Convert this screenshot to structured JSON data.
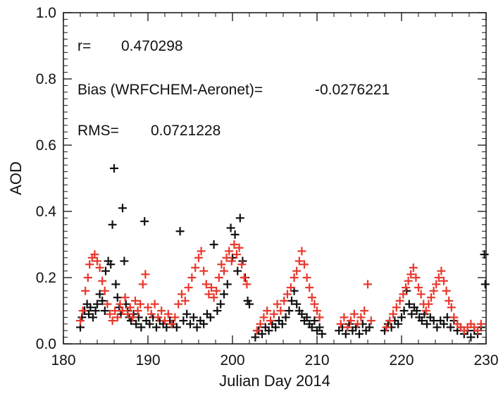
{
  "chart_data": {
    "type": "scatter",
    "title": "",
    "xlabel": "Julian Day 2014",
    "ylabel": "AOD",
    "xlim": [
      180,
      230
    ],
    "ylim": [
      0.0,
      1.0
    ],
    "x_ticks": [
      "180",
      "190",
      "200",
      "210",
      "220",
      "230"
    ],
    "y_ticks": [
      "0.0",
      "0.2",
      "0.4",
      "0.6",
      "0.8",
      "1.0"
    ],
    "grid": false,
    "legend": null,
    "marker": "+",
    "annotations": [
      {
        "label": "r=",
        "value": "0.470298"
      },
      {
        "label": "Bias (WRFCHEM-Aeronet)=",
        "value": "-0.0276221"
      },
      {
        "label": "RMS=",
        "value": "0.0721228"
      }
    ],
    "series": [
      {
        "color": "#111111",
        "points": [
          [
            182.0,
            0.05
          ],
          [
            182.2,
            0.08
          ],
          [
            182.5,
            0.1
          ],
          [
            182.8,
            0.12
          ],
          [
            183.0,
            0.09
          ],
          [
            183.2,
            0.11
          ],
          [
            183.5,
            0.08
          ],
          [
            183.8,
            0.1
          ],
          [
            184.0,
            0.12
          ],
          [
            184.3,
            0.15
          ],
          [
            184.6,
            0.13
          ],
          [
            184.9,
            0.1
          ],
          [
            185.0,
            0.22
          ],
          [
            185.3,
            0.25
          ],
          [
            185.6,
            0.24
          ],
          [
            185.8,
            0.36
          ],
          [
            186.0,
            0.53
          ],
          [
            186.2,
            0.18
          ],
          [
            186.4,
            0.14
          ],
          [
            186.6,
            0.11
          ],
          [
            186.8,
            0.09
          ],
          [
            187.0,
            0.41
          ],
          [
            187.2,
            0.25
          ],
          [
            187.4,
            0.12
          ],
          [
            187.6,
            0.1
          ],
          [
            187.8,
            0.08
          ],
          [
            188.0,
            0.07
          ],
          [
            188.3,
            0.09
          ],
          [
            188.6,
            0.06
          ],
          [
            188.9,
            0.08
          ],
          [
            189.2,
            0.05
          ],
          [
            189.6,
            0.37
          ],
          [
            189.8,
            0.07
          ],
          [
            190.2,
            0.06
          ],
          [
            190.6,
            0.08
          ],
          [
            191.0,
            0.05
          ],
          [
            191.4,
            0.07
          ],
          [
            191.8,
            0.06
          ],
          [
            192.2,
            0.05
          ],
          [
            192.6,
            0.07
          ],
          [
            193.0,
            0.06
          ],
          [
            193.4,
            0.05
          ],
          [
            193.8,
            0.34
          ],
          [
            194.2,
            0.07
          ],
          [
            194.6,
            0.09
          ],
          [
            195.0,
            0.06
          ],
          [
            195.4,
            0.08
          ],
          [
            195.8,
            0.05
          ],
          [
            196.2,
            0.07
          ],
          [
            196.6,
            0.06
          ],
          [
            197.0,
            0.09
          ],
          [
            197.4,
            0.08
          ],
          [
            197.8,
            0.3
          ],
          [
            198.2,
            0.1
          ],
          [
            198.6,
            0.12
          ],
          [
            199.0,
            0.15
          ],
          [
            199.4,
            0.18
          ],
          [
            199.8,
            0.35
          ],
          [
            200.0,
            0.26
          ],
          [
            200.3,
            0.33
          ],
          [
            200.6,
            0.22
          ],
          [
            200.9,
            0.38
          ],
          [
            201.2,
            0.25
          ],
          [
            201.5,
            0.2
          ],
          [
            201.8,
            0.13
          ],
          [
            202.0,
            0.12
          ],
          [
            202.7,
            0.02
          ],
          [
            203.1,
            0.04
          ],
          [
            203.5,
            0.03
          ],
          [
            203.9,
            0.05
          ],
          [
            204.3,
            0.04
          ],
          [
            204.7,
            0.06
          ],
          [
            205.1,
            0.05
          ],
          [
            205.5,
            0.07
          ],
          [
            205.9,
            0.06
          ],
          [
            206.3,
            0.08
          ],
          [
            206.7,
            0.1
          ],
          [
            207.0,
            0.13
          ],
          [
            207.3,
            0.16
          ],
          [
            207.6,
            0.12
          ],
          [
            207.9,
            0.1
          ],
          [
            208.2,
            0.09
          ],
          [
            208.5,
            0.07
          ],
          [
            208.8,
            0.08
          ],
          [
            209.1,
            0.06
          ],
          [
            209.4,
            0.05
          ],
          [
            209.7,
            0.07
          ],
          [
            210.0,
            0.04
          ],
          [
            210.3,
            0.05
          ],
          [
            210.6,
            0.03
          ],
          [
            212.6,
            0.04
          ],
          [
            213.0,
            0.05
          ],
          [
            213.4,
            0.03
          ],
          [
            213.8,
            0.06
          ],
          [
            214.2,
            0.04
          ],
          [
            214.6,
            0.05
          ],
          [
            215.0,
            0.03
          ],
          [
            215.4,
            0.06
          ],
          [
            215.8,
            0.04
          ],
          [
            216.2,
            0.05
          ],
          [
            218.0,
            0.04
          ],
          [
            218.4,
            0.06
          ],
          [
            218.8,
            0.05
          ],
          [
            219.2,
            0.07
          ],
          [
            219.6,
            0.06
          ],
          [
            220.0,
            0.08
          ],
          [
            220.3,
            0.1
          ],
          [
            220.6,
            0.16
          ],
          [
            220.9,
            0.12
          ],
          [
            221.2,
            0.09
          ],
          [
            221.5,
            0.11
          ],
          [
            221.8,
            0.1
          ],
          [
            222.1,
            0.08
          ],
          [
            222.4,
            0.07
          ],
          [
            222.7,
            0.09
          ],
          [
            223.0,
            0.06
          ],
          [
            223.4,
            0.08
          ],
          [
            223.8,
            0.07
          ],
          [
            224.2,
            0.05
          ],
          [
            224.6,
            0.07
          ],
          [
            225.0,
            0.06
          ],
          [
            225.4,
            0.08
          ],
          [
            225.8,
            0.05
          ],
          [
            226.2,
            0.07
          ],
          [
            226.6,
            0.04
          ],
          [
            227.0,
            0.05
          ],
          [
            227.4,
            0.03
          ],
          [
            227.8,
            0.04
          ],
          [
            228.2,
            0.02
          ],
          [
            228.6,
            0.04
          ],
          [
            229.0,
            0.03
          ],
          [
            229.4,
            0.05
          ],
          [
            229.8,
            0.27
          ],
          [
            229.9,
            0.18
          ]
        ]
      },
      {
        "color": "#e8382c",
        "points": [
          [
            182.0,
            0.07
          ],
          [
            182.3,
            0.1
          ],
          [
            182.6,
            0.16
          ],
          [
            182.9,
            0.2
          ],
          [
            183.1,
            0.24
          ],
          [
            183.4,
            0.26
          ],
          [
            183.7,
            0.27
          ],
          [
            184.0,
            0.25
          ],
          [
            184.3,
            0.23
          ],
          [
            184.6,
            0.19
          ],
          [
            184.9,
            0.16
          ],
          [
            185.2,
            0.12
          ],
          [
            185.5,
            0.09
          ],
          [
            185.8,
            0.07
          ],
          [
            186.1,
            0.1
          ],
          [
            186.4,
            0.08
          ],
          [
            186.7,
            0.12
          ],
          [
            187.0,
            0.1
          ],
          [
            187.3,
            0.14
          ],
          [
            187.6,
            0.09
          ],
          [
            187.9,
            0.11
          ],
          [
            188.2,
            0.08
          ],
          [
            188.5,
            0.13
          ],
          [
            188.8,
            0.1
          ],
          [
            189.1,
            0.12
          ],
          [
            189.4,
            0.18
          ],
          [
            189.7,
            0.21
          ],
          [
            190.0,
            0.11
          ],
          [
            190.4,
            0.09
          ],
          [
            190.8,
            0.12
          ],
          [
            191.2,
            0.08
          ],
          [
            191.6,
            0.1
          ],
          [
            192.0,
            0.07
          ],
          [
            192.4,
            0.09
          ],
          [
            192.8,
            0.06
          ],
          [
            193.2,
            0.08
          ],
          [
            193.6,
            0.12
          ],
          [
            194.0,
            0.15
          ],
          [
            194.4,
            0.13
          ],
          [
            194.8,
            0.17
          ],
          [
            195.2,
            0.2
          ],
          [
            195.6,
            0.23
          ],
          [
            196.0,
            0.26
          ],
          [
            196.3,
            0.28
          ],
          [
            196.6,
            0.22
          ],
          [
            196.9,
            0.18
          ],
          [
            197.2,
            0.15
          ],
          [
            197.5,
            0.17
          ],
          [
            197.8,
            0.14
          ],
          [
            198.1,
            0.16
          ],
          [
            198.4,
            0.2
          ],
          [
            198.7,
            0.24
          ],
          [
            199.0,
            0.22
          ],
          [
            199.3,
            0.26
          ],
          [
            199.6,
            0.28
          ],
          [
            199.9,
            0.25
          ],
          [
            200.2,
            0.3
          ],
          [
            200.5,
            0.27
          ],
          [
            200.8,
            0.29
          ],
          [
            201.1,
            0.24
          ],
          [
            201.4,
            0.2
          ],
          [
            201.7,
            0.18
          ],
          [
            202.9,
            0.04
          ],
          [
            203.3,
            0.06
          ],
          [
            203.7,
            0.08
          ],
          [
            204.1,
            0.1
          ],
          [
            204.5,
            0.07
          ],
          [
            204.9,
            0.09
          ],
          [
            205.3,
            0.12
          ],
          [
            205.7,
            0.1
          ],
          [
            206.1,
            0.13
          ],
          [
            206.5,
            0.15
          ],
          [
            206.9,
            0.17
          ],
          [
            207.3,
            0.2
          ],
          [
            207.6,
            0.22
          ],
          [
            207.9,
            0.25
          ],
          [
            208.2,
            0.28
          ],
          [
            208.5,
            0.24
          ],
          [
            208.8,
            0.2
          ],
          [
            209.1,
            0.17
          ],
          [
            209.4,
            0.14
          ],
          [
            209.7,
            0.12
          ],
          [
            210.0,
            0.1
          ],
          [
            210.3,
            0.08
          ],
          [
            212.8,
            0.06
          ],
          [
            213.2,
            0.08
          ],
          [
            213.6,
            0.05
          ],
          [
            214.0,
            0.07
          ],
          [
            214.4,
            0.09
          ],
          [
            214.8,
            0.06
          ],
          [
            215.2,
            0.08
          ],
          [
            215.6,
            0.1
          ],
          [
            216.0,
            0.18
          ],
          [
            216.4,
            0.07
          ],
          [
            218.2,
            0.05
          ],
          [
            218.6,
            0.07
          ],
          [
            219.0,
            0.09
          ],
          [
            219.4,
            0.11
          ],
          [
            219.8,
            0.13
          ],
          [
            220.2,
            0.15
          ],
          [
            220.5,
            0.17
          ],
          [
            220.8,
            0.19
          ],
          [
            221.1,
            0.21
          ],
          [
            221.4,
            0.23
          ],
          [
            221.7,
            0.2
          ],
          [
            222.0,
            0.17
          ],
          [
            222.3,
            0.15
          ],
          [
            222.6,
            0.12
          ],
          [
            222.9,
            0.1
          ],
          [
            223.2,
            0.12
          ],
          [
            223.5,
            0.14
          ],
          [
            223.8,
            0.16
          ],
          [
            224.1,
            0.18
          ],
          [
            224.4,
            0.2
          ],
          [
            224.7,
            0.22
          ],
          [
            225.0,
            0.19
          ],
          [
            225.3,
            0.16
          ],
          [
            225.6,
            0.13
          ],
          [
            225.9,
            0.11
          ],
          [
            226.2,
            0.08
          ],
          [
            226.6,
            0.06
          ],
          [
            227.0,
            0.05
          ],
          [
            227.4,
            0.04
          ],
          [
            227.8,
            0.05
          ],
          [
            228.2,
            0.06
          ],
          [
            228.6,
            0.05
          ],
          [
            229.0,
            0.04
          ],
          [
            229.4,
            0.06
          ]
        ]
      }
    ]
  }
}
